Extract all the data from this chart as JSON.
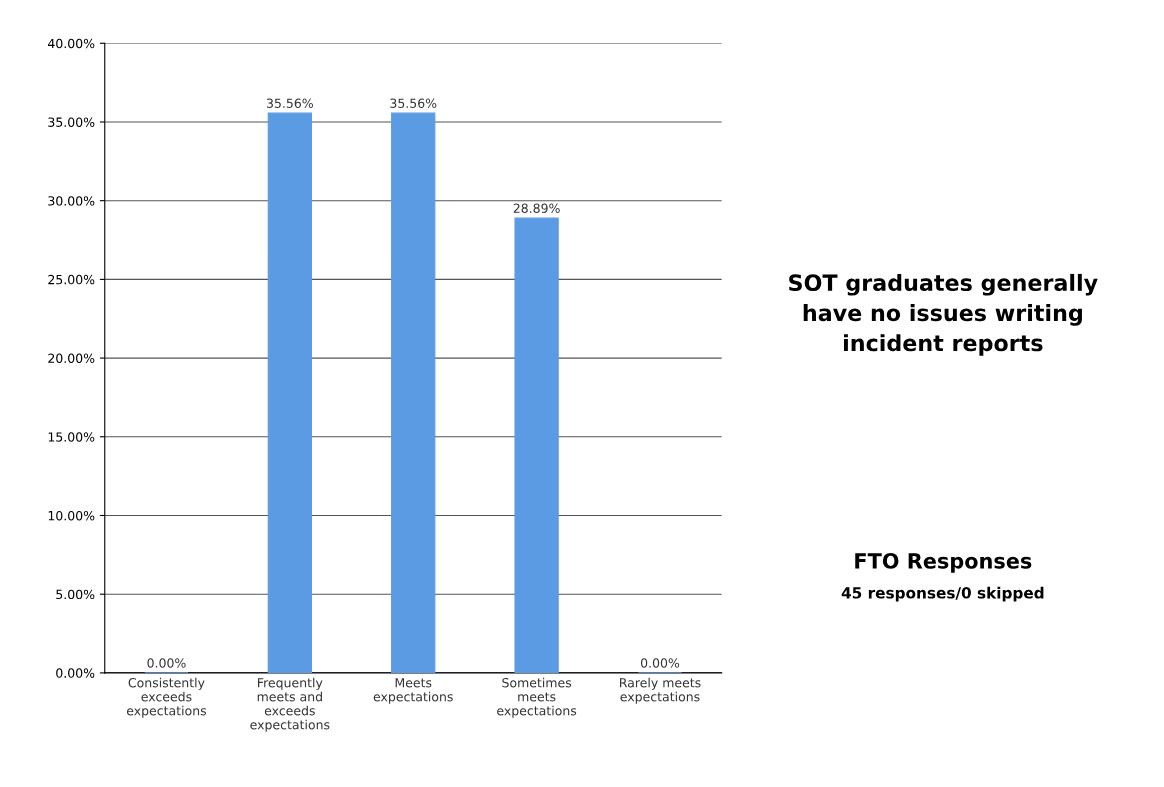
{
  "chart_data": {
    "type": "bar",
    "categories": [
      "Consistently\nexceeds\nexpectations",
      "Frequently\nmeets and\nexceeds\nexpectations",
      "Meets\nexpectations",
      "Sometimes\nmeets\nexpectations",
      "Rarely meets\nexpectations"
    ],
    "values": [
      0,
      35.56,
      35.56,
      28.89,
      0
    ],
    "value_labels": [
      "0.00%",
      "35.56%",
      "35.56%",
      "28.89%",
      "0.00%"
    ],
    "color": "#5b9be3",
    "ylim": [
      0,
      40
    ],
    "yticks": [
      {
        "value": 0,
        "label": "0.00%"
      },
      {
        "value": 5,
        "label": "5.00%"
      },
      {
        "value": 10,
        "label": "10.00%"
      },
      {
        "value": 15,
        "label": "15.00%"
      },
      {
        "value": 20,
        "label": "20.00%"
      },
      {
        "value": 25,
        "label": "25.00%"
      },
      {
        "value": 30,
        "label": "30.00%"
      },
      {
        "value": 35,
        "label": "35.00%"
      },
      {
        "value": 40,
        "label": "40.00%"
      }
    ],
    "grid": "y",
    "annotations": [
      "SOT graduates generally have no issues writing incident reports",
      "FTO Responses",
      "45 responses/0 skipped"
    ]
  }
}
